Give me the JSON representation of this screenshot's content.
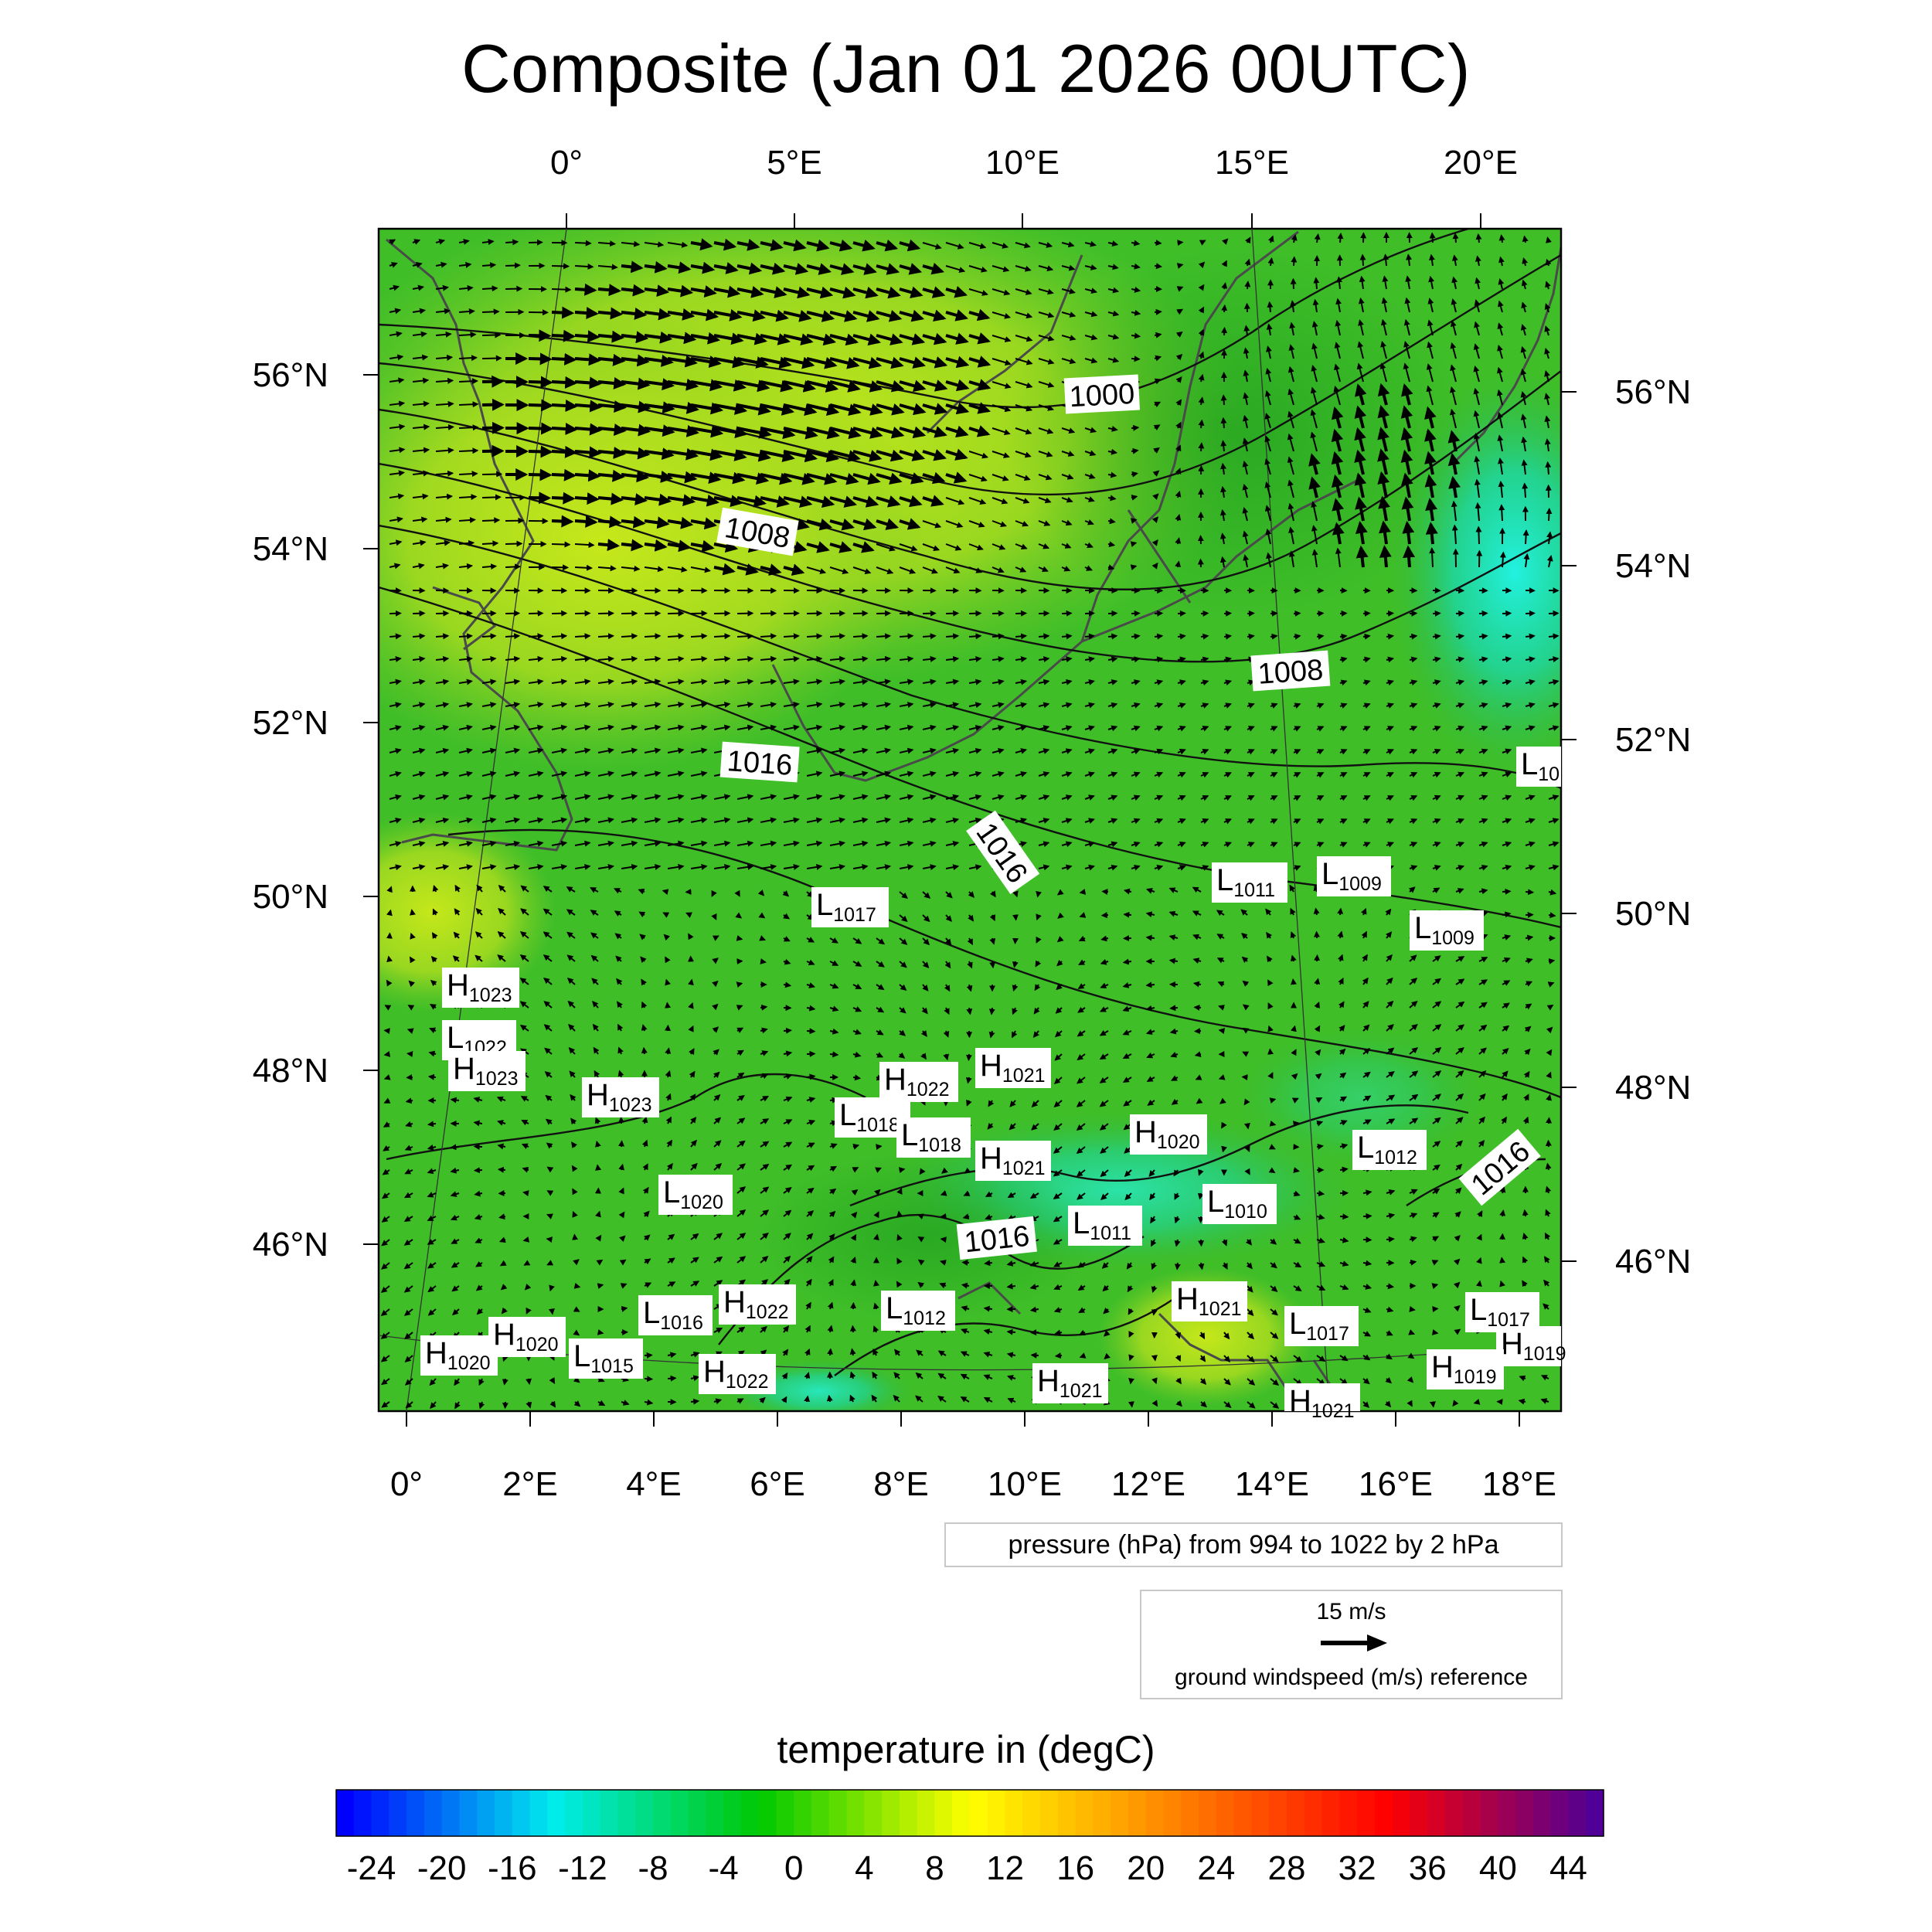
{
  "title": "Composite (Jan 01 2026 00UTC)",
  "top_lon_labels": [
    "0°",
    "5°E",
    "10°E",
    "15°E",
    "20°E"
  ],
  "bottom_lon_labels": [
    "0°",
    "2°E",
    "4°E",
    "6°E",
    "8°E",
    "10°E",
    "12°E",
    "14°E",
    "16°E",
    "18°E"
  ],
  "left_lat_labels": [
    "56°N",
    "54°N",
    "52°N",
    "50°N",
    "48°N",
    "46°N"
  ],
  "right_lat_labels": [
    "56°N",
    "54°N",
    "52°N",
    "50°N",
    "48°N",
    "46°N"
  ],
  "contour_labels": [
    "1000",
    "1008",
    "1008",
    "1016",
    "1016",
    "1016",
    "1016"
  ],
  "pressure_centers": [
    {
      "type": "H",
      "value": "1023"
    },
    {
      "type": "L",
      "value": "1022"
    },
    {
      "type": "H",
      "value": "1023"
    },
    {
      "type": "H",
      "value": "1023"
    },
    {
      "type": "L",
      "value": "1020"
    },
    {
      "type": "L",
      "value": "1017"
    },
    {
      "type": "L",
      "value": "1018"
    },
    {
      "type": "H",
      "value": "1022"
    },
    {
      "type": "L",
      "value": "1018"
    },
    {
      "type": "H",
      "value": "1021"
    },
    {
      "type": "H",
      "value": "1021"
    },
    {
      "type": "H",
      "value": "1020"
    },
    {
      "type": "L",
      "value": "1011"
    },
    {
      "type": "L",
      "value": "1010"
    },
    {
      "type": "L",
      "value": "1011"
    },
    {
      "type": "L",
      "value": "1009"
    },
    {
      "type": "L",
      "value": "1009"
    },
    {
      "type": "L",
      "value": "1012"
    },
    {
      "type": "L",
      "value": "10"
    },
    {
      "type": "L",
      "value": "1016"
    },
    {
      "type": "H",
      "value": "1022"
    },
    {
      "type": "L",
      "value": "1012"
    },
    {
      "type": "H",
      "value": "1021"
    },
    {
      "type": "L",
      "value": "1017"
    },
    {
      "type": "L",
      "value": "1017"
    },
    {
      "type": "H",
      "value": "1019"
    },
    {
      "type": "H",
      "value": "1019"
    },
    {
      "type": "H",
      "value": "1020"
    },
    {
      "type": "H",
      "value": "1020"
    },
    {
      "type": "L",
      "value": "1015"
    },
    {
      "type": "H",
      "value": "1022"
    },
    {
      "type": "H",
      "value": "1021"
    },
    {
      "type": "H",
      "value": "1021"
    }
  ],
  "pressure_info": "pressure (hPa) from 994 to 1022 by 2 hPa",
  "wind_reference": {
    "speed_label": "15 m/s",
    "description": "ground windspeed (m/s) reference"
  },
  "colorbar": {
    "title": "temperature in (degC)",
    "tick_labels": [
      "-24",
      "-20",
      "-16",
      "-12",
      "-8",
      "-4",
      "0",
      "4",
      "8",
      "12",
      "16",
      "20",
      "24",
      "28",
      "32",
      "36",
      "40",
      "44"
    ],
    "min": -26,
    "max": 46,
    "step": 1,
    "colors": [
      "#0000ff",
      "#00eded",
      "#00c800",
      "#ffff00",
      "#ff8000",
      "#ff0000",
      "#500096"
    ]
  },
  "field_colors": {
    "cold": "#1fe0c8",
    "cool": "#2cb82c",
    "mild": "#4bc62a",
    "warm": "#c0e41c",
    "land_border": "#4a4a4a"
  }
}
